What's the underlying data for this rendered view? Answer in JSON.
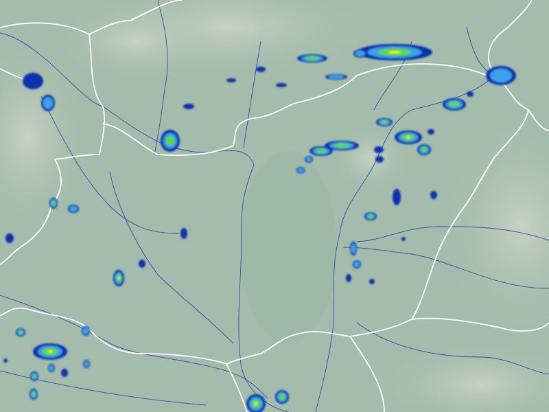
{
  "map": {
    "type": "precipitation-radar",
    "colors": {
      "terrain_low": "#a7bfae",
      "terrain_plain": "#9bb7a6",
      "terrain_high": "#c4cfc0",
      "border": "#ffffff",
      "river": "#1a3aa8",
      "precip_light": "#1030b0",
      "precip_moderate": "#3aa0e8",
      "precip_heavy": "#60d840",
      "precip_intense": "#f0f020",
      "precip_extreme": "#e04020"
    }
  }
}
